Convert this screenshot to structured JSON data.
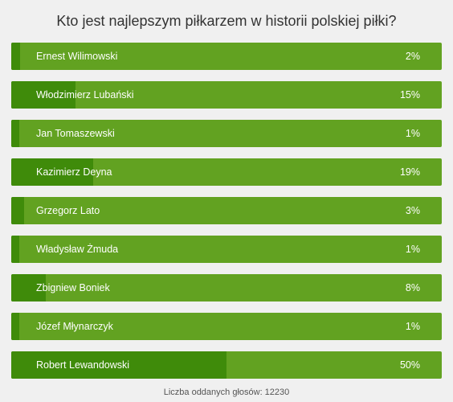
{
  "poll": {
    "question": "Kto jest najlepszym piłkarzem w historii polskiej piłki?",
    "options": [
      {
        "label": "Ernest Wilimowski",
        "percent_text": "2%",
        "percent": 2
      },
      {
        "label": "Włodzimierz Lubański",
        "percent_text": "15%",
        "percent": 15
      },
      {
        "label": "Jan Tomaszewski",
        "percent_text": "1%",
        "percent": 1
      },
      {
        "label": "Kazimierz Deyna",
        "percent_text": "19%",
        "percent": 19
      },
      {
        "label": "Grzegorz Lato",
        "percent_text": "3%",
        "percent": 3
      },
      {
        "label": "Władysław Żmuda",
        "percent_text": "1%",
        "percent": 1
      },
      {
        "label": "Zbigniew Boniek",
        "percent_text": "8%",
        "percent": 8
      },
      {
        "label": "Józef Młynarczyk",
        "percent_text": "1%",
        "percent": 1
      },
      {
        "label": "Robert Lewandowski",
        "percent_text": "50%",
        "percent": 50
      }
    ],
    "footer": "Liczba oddanych głosów: 12230"
  },
  "colors": {
    "background": "#f0f0f0",
    "bar": "#62a221",
    "bar_fill": "#3f8b0a",
    "bar_text": "#ffffff",
    "title_text": "#333333"
  }
}
